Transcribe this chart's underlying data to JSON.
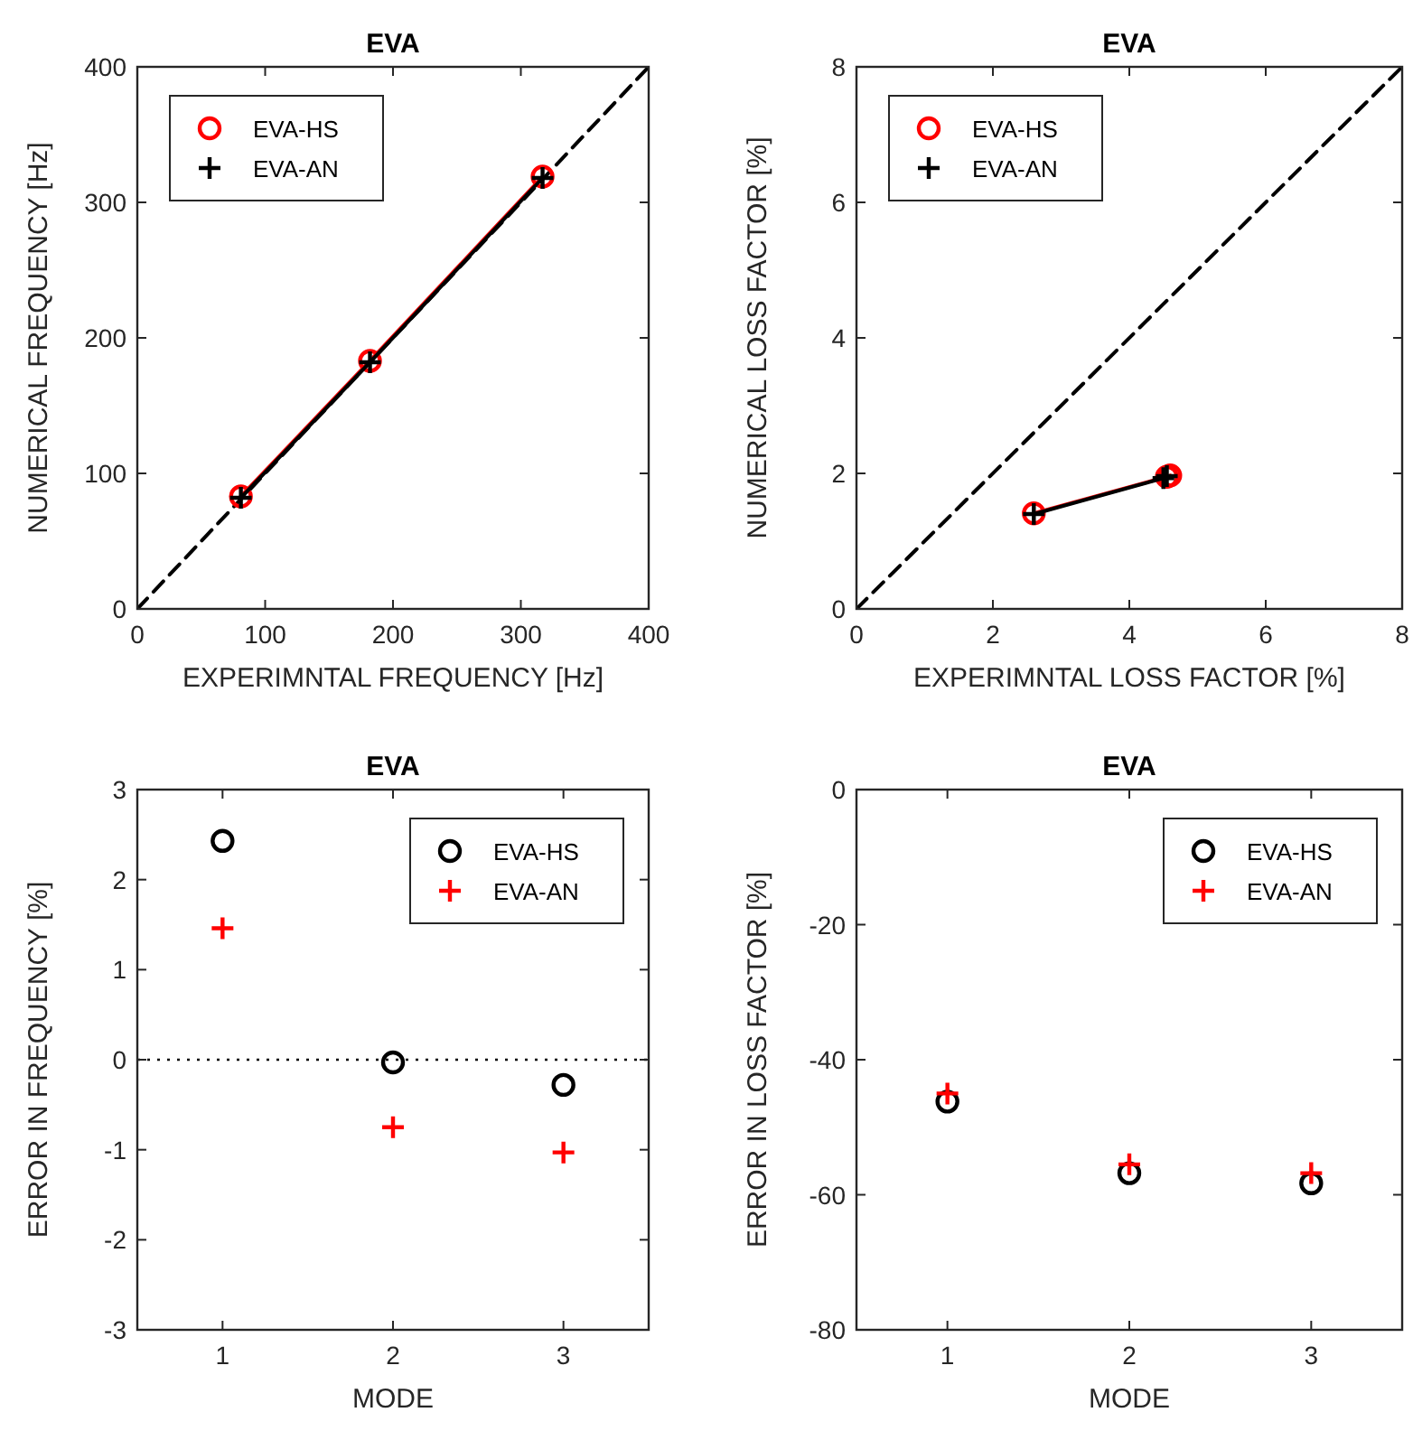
{
  "chart_data": [
    {
      "type": "line",
      "title": "EVA",
      "xlabel": "EXPERIMNTAL FREQUENCY [Hz]",
      "ylabel": "NUMERICAL FREQUENCY [Hz]",
      "xlim": [
        0,
        400
      ],
      "ylim": [
        0,
        400
      ],
      "xticks": [
        0,
        100,
        200,
        300,
        400
      ],
      "yticks": [
        0,
        100,
        200,
        300,
        400
      ],
      "grid": false,
      "legend": "top left",
      "series": [
        {
          "type": "line",
          "color": "#000000",
          "line_style": "dashed",
          "marker": "none",
          "x": [
            0,
            400
          ],
          "values": [
            0,
            400
          ]
        },
        {
          "name": "EVA-HS",
          "color": "#ff0000",
          "marker": "circle",
          "line_style": "solid",
          "x": [
            81,
            182,
            317
          ],
          "values": [
            83,
            183,
            319
          ]
        },
        {
          "name": "EVA-AN",
          "color": "#000000",
          "marker": "cross",
          "line_style": "solid",
          "x": [
            81,
            182,
            317
          ],
          "values": [
            82,
            182,
            318
          ]
        }
      ]
    },
    {
      "type": "line",
      "title": "EVA",
      "xlabel": "EXPERIMNTAL LOSS FACTOR [%]",
      "ylabel": "NUMERICAL LOSS FACTOR [%]",
      "xlim": [
        0,
        8
      ],
      "ylim": [
        0,
        8
      ],
      "xticks": [
        0,
        2,
        4,
        6,
        8
      ],
      "yticks": [
        0,
        2,
        4,
        6,
        8
      ],
      "grid": false,
      "legend": "top left",
      "series": [
        {
          "type": "line",
          "color": "#000000",
          "line_style": "dashed",
          "marker": "none",
          "x": [
            0,
            8
          ],
          "values": [
            0,
            8
          ]
        },
        {
          "name": "EVA-HS",
          "color": "#ff0000",
          "marker": "circle",
          "line_style": "solid",
          "x": [
            2.6,
            4.55,
            4.6
          ],
          "values": [
            1.41,
            1.95,
            1.97
          ]
        },
        {
          "name": "EVA-AN",
          "color": "#000000",
          "marker": "cross",
          "line_style": "solid",
          "x": [
            2.6,
            4.5,
            4.55
          ],
          "values": [
            1.4,
            1.93,
            1.96
          ]
        }
      ]
    },
    {
      "type": "scatter",
      "title": "EVA",
      "xlabel": "MODE",
      "ylabel": "ERROR IN FREQUENCY [%]",
      "xlim": [
        0.5,
        3.5
      ],
      "ylim": [
        -3,
        3
      ],
      "xticks": [
        1,
        2,
        3
      ],
      "yticks": [
        -3,
        -2,
        -1,
        0,
        1,
        2,
        3
      ],
      "grid": false,
      "legend": "top right",
      "ref_lines": [
        {
          "axis": "y",
          "value": 0,
          "color": "#000000",
          "line_style": "dotted"
        }
      ],
      "series": [
        {
          "name": "EVA-HS",
          "color": "#000000",
          "marker": "circle",
          "x": [
            1,
            2,
            3
          ],
          "values": [
            2.43,
            -0.03,
            -0.28
          ]
        },
        {
          "name": "EVA-AN",
          "color": "#ff0000",
          "marker": "cross",
          "x": [
            1,
            2,
            3
          ],
          "values": [
            1.46,
            -0.75,
            -1.03
          ]
        }
      ]
    },
    {
      "type": "scatter",
      "title": "EVA",
      "xlabel": "MODE",
      "ylabel": "ERROR IN LOSS FACTOR [%]",
      "xlim": [
        0.5,
        3.5
      ],
      "ylim": [
        -80,
        0
      ],
      "xticks": [
        1,
        2,
        3
      ],
      "yticks": [
        -80,
        -60,
        -40,
        -20,
        0
      ],
      "grid": false,
      "legend": "top right",
      "series": [
        {
          "name": "EVA-HS",
          "color": "#000000",
          "marker": "circle",
          "x": [
            1,
            2,
            3
          ],
          "values": [
            -46.2,
            -56.8,
            -58.3
          ]
        },
        {
          "name": "EVA-AN",
          "color": "#ff0000",
          "marker": "cross",
          "x": [
            1,
            2,
            3
          ],
          "values": [
            -45,
            -55.5,
            -56.8
          ]
        }
      ]
    }
  ]
}
